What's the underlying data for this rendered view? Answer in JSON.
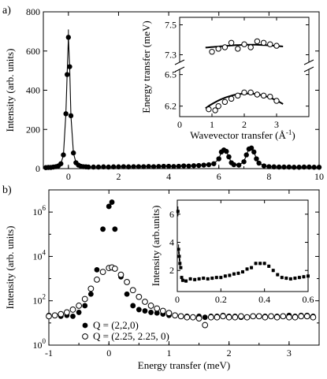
{
  "panels": {
    "a": "a)",
    "b": "b)"
  },
  "chart_data": [
    {
      "id": "a-main",
      "type": "scatter",
      "xlabel": "",
      "ylabel": "Intensity (arb. units)",
      "xlim": [
        -1,
        10
      ],
      "ylim": [
        0,
        800
      ],
      "xticks": [
        0,
        2,
        4,
        6,
        8,
        10
      ],
      "yticks": [
        0,
        200,
        400,
        600,
        800
      ],
      "series": [
        {
          "x": [
            -0.9,
            -0.8,
            -0.7,
            -0.6,
            -0.5,
            -0.4,
            -0.3,
            -0.2,
            -0.1,
            -0.05,
            0,
            0.05,
            0.1,
            0.2,
            0.3,
            0.4,
            0.5,
            0.6,
            0.7,
            0.8,
            1.0,
            1.2,
            1.4,
            1.6,
            1.8,
            2.0,
            2.2,
            2.4,
            2.6,
            2.8,
            3.0,
            3.2,
            3.4,
            3.6,
            3.8,
            4.0,
            4.2,
            4.4,
            4.6,
            4.8,
            5.0,
            5.2,
            5.4,
            5.6,
            5.8,
            6.0,
            6.1,
            6.2,
            6.3,
            6.4,
            6.5,
            6.6,
            6.8,
            7.0,
            7.1,
            7.2,
            7.3,
            7.4,
            7.5,
            7.6,
            7.8,
            8.0,
            8.2,
            8.4,
            8.6,
            8.8,
            9.0,
            9.2,
            9.4,
            9.6,
            9.8,
            10.0
          ],
          "y": [
            5,
            6,
            6,
            8,
            10,
            14,
            25,
            70,
            280,
            480,
            670,
            520,
            270,
            80,
            30,
            18,
            12,
            10,
            9,
            8,
            8,
            8,
            9,
            8,
            9,
            9,
            10,
            9,
            10,
            10,
            10,
            11,
            10,
            11,
            12,
            12,
            11,
            12,
            14,
            13,
            15,
            16,
            18,
            20,
            25,
            50,
            85,
            95,
            88,
            60,
            30,
            20,
            18,
            35,
            70,
            100,
            105,
            85,
            50,
            28,
            14,
            10,
            9,
            8,
            8,
            8,
            7,
            7,
            8,
            8,
            7,
            7
          ]
        }
      ]
    },
    {
      "id": "a-inset",
      "type": "scatter",
      "xlabel": "Wavevector transfer (Å",
      "xlabel_sup": "-1",
      "xlabel_end": ")",
      "ylabel": "Energy transfer (meV)",
      "xlim": [
        0,
        4
      ],
      "xticks": [
        0,
        1,
        2,
        3
      ],
      "ylim_upper": [
        7.25,
        7.55
      ],
      "yticks_upper": [
        7.3,
        7.5
      ],
      "ylim_lower": [
        6.1,
        6.55
      ],
      "yticks_lower": [
        6.2,
        6.5
      ],
      "series": [
        {
          "branch": "upper",
          "x": [
            1.0,
            1.2,
            1.4,
            1.6,
            1.8,
            2.0,
            2.2,
            2.4,
            2.6,
            2.8,
            3.0
          ],
          "y": [
            7.32,
            7.34,
            7.35,
            7.38,
            7.34,
            7.37,
            7.35,
            7.39,
            7.38,
            7.37,
            7.36
          ]
        },
        {
          "branch": "lower",
          "x": [
            0.9,
            1.1,
            1.2,
            1.4,
            1.6,
            1.8,
            2.0,
            2.2,
            2.4,
            2.6,
            2.8,
            3.0
          ],
          "y": [
            6.17,
            6.16,
            6.2,
            6.24,
            6.27,
            6.3,
            6.33,
            6.33,
            6.31,
            6.3,
            6.29,
            6.25
          ]
        }
      ]
    },
    {
      "id": "b-main",
      "type": "scatter",
      "xlabel": "Energy transfer (meV)",
      "ylabel": "Intensity (arb. units)",
      "yscale": "log",
      "xlim": [
        -1,
        3.5
      ],
      "ylim_log10": [
        0,
        7
      ],
      "xticks": [
        -1,
        0,
        1,
        2,
        3
      ],
      "yticks": [
        {
          "base": "10",
          "exp": "0"
        },
        {
          "base": "10",
          "exp": "2"
        },
        {
          "base": "10",
          "exp": "4"
        },
        {
          "base": "10",
          "exp": "6"
        }
      ],
      "legend": [
        {
          "marker": "filled",
          "label": "Q = (2,2,0)"
        },
        {
          "marker": "open",
          "label": "Q = (2.25, 2.25, 0)"
        }
      ],
      "series": [
        {
          "marker": "filled",
          "x": [
            -1.0,
            -0.9,
            -0.8,
            -0.7,
            -0.6,
            -0.5,
            -0.4,
            -0.3,
            -0.2,
            -0.1,
            0.0,
            0.05,
            0.1,
            0.2,
            0.3,
            0.4,
            0.5,
            0.6,
            0.7,
            0.8,
            0.9,
            1.0,
            1.1,
            1.2,
            1.3,
            1.4,
            1.5,
            1.6,
            1.7,
            1.8,
            1.9,
            2.0,
            2.1,
            2.2,
            2.3,
            2.4,
            2.5,
            2.6,
            2.7,
            2.8,
            2.9,
            3.0,
            3.1,
            3.2,
            3.3,
            3.4
          ],
          "y": [
            22,
            22,
            20,
            22,
            20,
            30,
            60,
            200,
            2500,
            170000,
            1800000,
            2800000,
            170000,
            1200,
            200,
            60,
            40,
            35,
            30,
            28,
            25,
            22,
            22,
            20,
            20,
            18,
            20,
            18,
            20,
            20,
            22,
            20,
            20,
            18,
            18,
            20,
            20,
            20,
            20,
            20,
            20,
            22,
            20,
            22,
            22,
            20
          ]
        },
        {
          "marker": "open",
          "x": [
            -1.0,
            -0.9,
            -0.8,
            -0.7,
            -0.6,
            -0.5,
            -0.4,
            -0.3,
            -0.2,
            -0.1,
            0.0,
            0.05,
            0.1,
            0.2,
            0.3,
            0.4,
            0.5,
            0.6,
            0.7,
            0.8,
            0.9,
            1.0,
            1.1,
            1.2,
            1.3,
            1.4,
            1.5,
            1.6,
            1.7,
            1.8,
            1.9,
            2.0,
            2.1,
            2.2,
            2.3,
            2.4,
            2.5,
            2.6,
            2.7,
            2.8,
            2.9,
            3.0,
            3.1,
            3.2,
            3.3,
            3.4
          ],
          "y": [
            20,
            22,
            25,
            30,
            40,
            60,
            120,
            350,
            900,
            2000,
            3000,
            3200,
            2800,
            1500,
            700,
            300,
            150,
            90,
            60,
            45,
            35,
            28,
            22,
            20,
            18,
            18,
            16,
            8,
            18,
            18,
            20,
            18,
            18,
            20,
            18,
            20,
            20,
            18,
            20,
            18,
            20,
            18,
            18,
            20,
            20,
            18
          ]
        }
      ]
    },
    {
      "id": "b-inset",
      "type": "scatter",
      "xlabel": "",
      "ylabel": "Intensity (arb.units)",
      "xlim": [
        0,
        0.6
      ],
      "ylim": [
        0.5,
        7
      ],
      "xticks": [
        0,
        0.2,
        0.4,
        0.6
      ],
      "yticks": [
        2,
        4,
        6
      ],
      "series": [
        {
          "x": [
            0.003,
            0.006,
            0.009,
            0.012,
            0.016,
            0.02,
            0.025,
            0.04,
            0.06,
            0.08,
            0.1,
            0.12,
            0.14,
            0.16,
            0.18,
            0.2,
            0.22,
            0.24,
            0.26,
            0.28,
            0.3,
            0.32,
            0.34,
            0.36,
            0.38,
            0.4,
            0.42,
            0.44,
            0.46,
            0.48,
            0.5,
            0.52,
            0.54,
            0.56,
            0.58,
            0.6
          ],
          "y": [
            6.2,
            3.5,
            3.0,
            2.5,
            2.2,
            1.5,
            1.3,
            1.25,
            1.4,
            1.35,
            1.4,
            1.45,
            1.4,
            1.45,
            1.5,
            1.5,
            1.6,
            1.65,
            1.75,
            1.8,
            1.9,
            2.1,
            2.2,
            2.5,
            2.5,
            2.5,
            2.3,
            2.0,
            1.7,
            1.5,
            1.45,
            1.4,
            1.45,
            1.5,
            1.55,
            1.6
          ]
        }
      ]
    }
  ]
}
